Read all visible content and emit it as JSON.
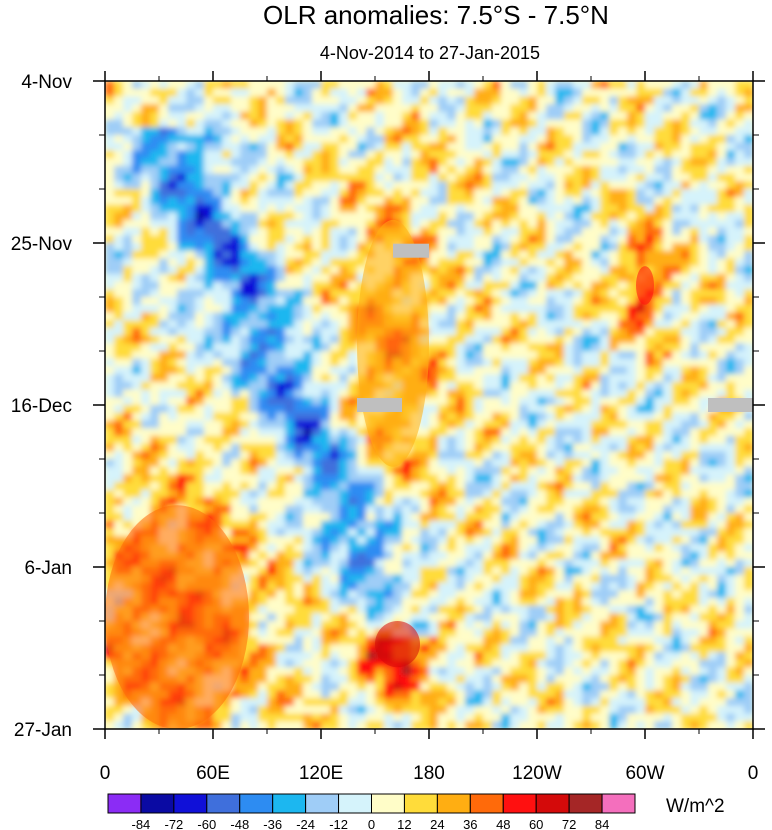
{
  "chart_data": {
    "type": "heatmap",
    "title": "OLR anomalies: 7.5°S - 7.5°N",
    "subtitle": "4-Nov-2014 to 27-Jan-2015",
    "xlabel": "",
    "ylabel": "",
    "x_ticks": [
      "0",
      "60E",
      "120E",
      "180",
      "120W",
      "60W",
      "0"
    ],
    "x_range_deg_east": [
      0,
      360
    ],
    "y_ticks": [
      "4-Nov",
      "25-Nov",
      "16-Dec",
      "6-Jan",
      "27-Jan"
    ],
    "y_range_days_since_4Nov": [
      0,
      84
    ],
    "colorbar": {
      "units": "W/m^2",
      "levels": [
        "-84",
        "-72",
        "-60",
        "-48",
        "-36",
        "-24",
        "-12",
        "0",
        "12",
        "24",
        "36",
        "48",
        "60",
        "72",
        "84"
      ],
      "colors": [
        "#8b2cf5",
        "#0a0aa3",
        "#1010d8",
        "#3f6fdc",
        "#2d8cf2",
        "#1cb7f0",
        "#9fcdf7",
        "#d5f3fb",
        "#fffdc8",
        "#ffdc3a",
        "#ffae12",
        "#ff6a0a",
        "#ff1010",
        "#d40a0a",
        "#a52626",
        "#f46fbd"
      ]
    },
    "features": [
      {
        "label": "Eastward-propagating convective (negative OLR) envelope",
        "lon_start": 40,
        "lon_end": 160,
        "day_start": 10,
        "day_end": 68,
        "value": -48
      },
      {
        "label": "Suppressed convection (positive OLR) over Indian Ocean",
        "lon_start": 0,
        "lon_end": 80,
        "day_start": 55,
        "day_end": 84,
        "value": 36
      },
      {
        "label": "Suppressed convection over central Pacific",
        "lon_start": 140,
        "lon_end": 180,
        "day_start": 18,
        "day_end": 50,
        "value": 30
      },
      {
        "label": "Positive anomaly near date line",
        "lon_start": 150,
        "lon_end": 175,
        "day_start": 70,
        "day_end": 76,
        "value": 60
      },
      {
        "label": "Positive anomaly over South America",
        "lon_start": 295,
        "lon_end": 305,
        "day_start": 24,
        "day_end": 29,
        "value": 48
      }
    ],
    "missing_data_segments": [
      {
        "lon_start": 160,
        "lon_end": 180,
        "day": 22
      },
      {
        "lon_start": 140,
        "lon_end": 165,
        "day": 42
      },
      {
        "lon_start": 335,
        "lon_end": 360,
        "day": 42
      }
    ]
  }
}
